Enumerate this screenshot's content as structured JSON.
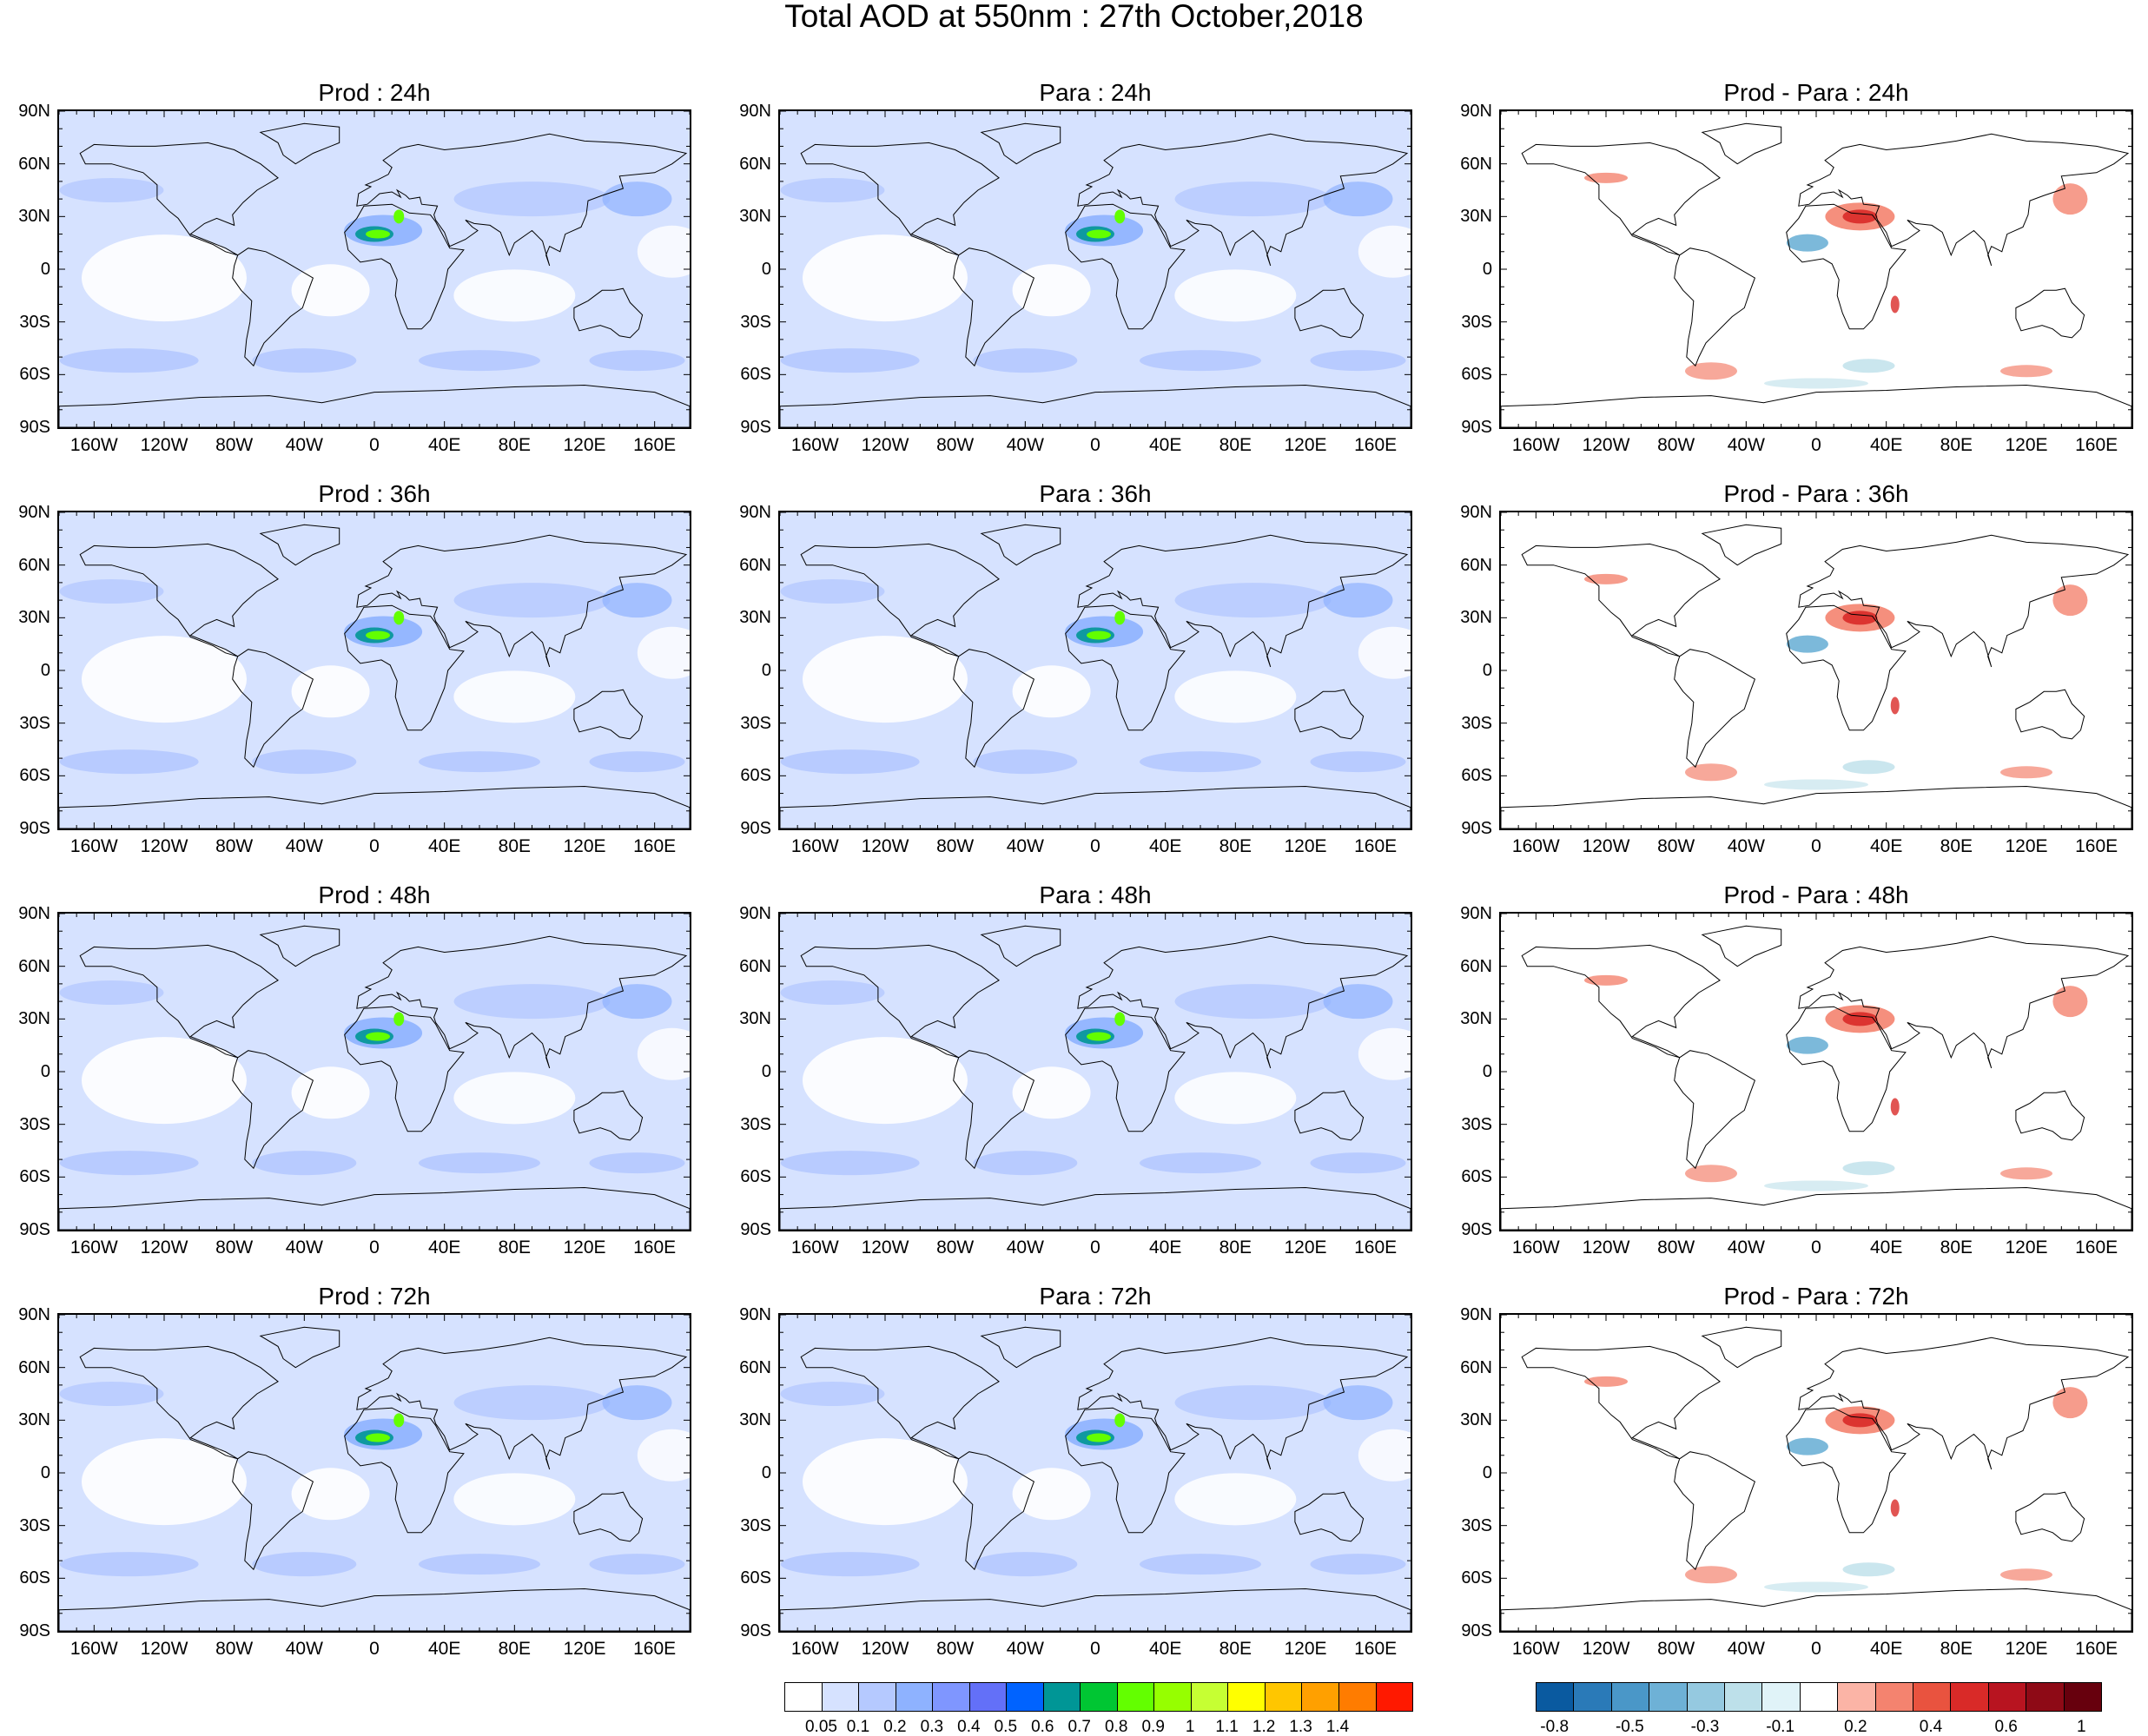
{
  "title": "Total AOD at 550nm : 27th October,2018",
  "panels": [
    {
      "title": "Prod : 24h",
      "kind": "aod"
    },
    {
      "title": "Para : 24h",
      "kind": "aod"
    },
    {
      "title": "Prod - Para : 24h",
      "kind": "diff"
    },
    {
      "title": "Prod : 36h",
      "kind": "aod"
    },
    {
      "title": "Para : 36h",
      "kind": "aod"
    },
    {
      "title": "Prod - Para : 36h",
      "kind": "diff"
    },
    {
      "title": "Prod : 48h",
      "kind": "aod"
    },
    {
      "title": "Para : 48h",
      "kind": "aod"
    },
    {
      "title": "Prod - Para : 48h",
      "kind": "diff"
    },
    {
      "title": "Prod : 72h",
      "kind": "aod"
    },
    {
      "title": "Para : 72h",
      "kind": "aod"
    },
    {
      "title": "Prod - Para : 72h",
      "kind": "diff"
    }
  ],
  "lat_labels": [
    "90N",
    "60N",
    "30N",
    "0",
    "30S",
    "60S",
    "90S"
  ],
  "lon_labels": [
    "160W",
    "120W",
    "80W",
    "40W",
    "0",
    "40E",
    "80E",
    "120E",
    "160E"
  ],
  "aod_colorbar": {
    "colors": [
      "#ffffff",
      "#d6e2ff",
      "#b5c9ff",
      "#8eb2ff",
      "#7f96ff",
      "#6370f8",
      "#0063ff",
      "#009696",
      "#00c633",
      "#63ff00",
      "#96ff00",
      "#c6ff33",
      "#ffff00",
      "#ffc600",
      "#ffa000",
      "#ff7c00",
      "#ff1900"
    ],
    "labels": [
      "0.05",
      "0.1",
      "0.2",
      "0.3",
      "0.4",
      "0.5",
      "0.6",
      "0.7",
      "0.8",
      "0.9",
      "1",
      "1.1",
      "1.2",
      "1.3",
      "1.4"
    ]
  },
  "diff_colorbar": {
    "colors": [
      "#0a5aa0",
      "#2a7ab8",
      "#4a97c8",
      "#6eb1d6",
      "#95c9e0",
      "#bde0ea",
      "#e0f3f8",
      "#ffffff",
      "#fbb4a6",
      "#f4836f",
      "#e9533f",
      "#d92a28",
      "#b81420",
      "#8e0a16",
      "#67000d"
    ],
    "labels": [
      "-0.8",
      "-0.5",
      "-0.3",
      "-0.1",
      "0.2",
      "0.4",
      "0.6",
      "1"
    ]
  },
  "colors": {
    "land": "#ffffff",
    "coast": "#000000",
    "aod_light": "#d6e2ff",
    "aod_mid": "#b5c9ff",
    "aod_high": "#8eb2ff",
    "dust_green": "#63ff00",
    "dust_teal": "#009696",
    "diff_pos": "#f4836f",
    "diff_pos_strong": "#d92a28",
    "diff_neg": "#6eb1d6",
    "diff_neg_light": "#bde0ea"
  }
}
